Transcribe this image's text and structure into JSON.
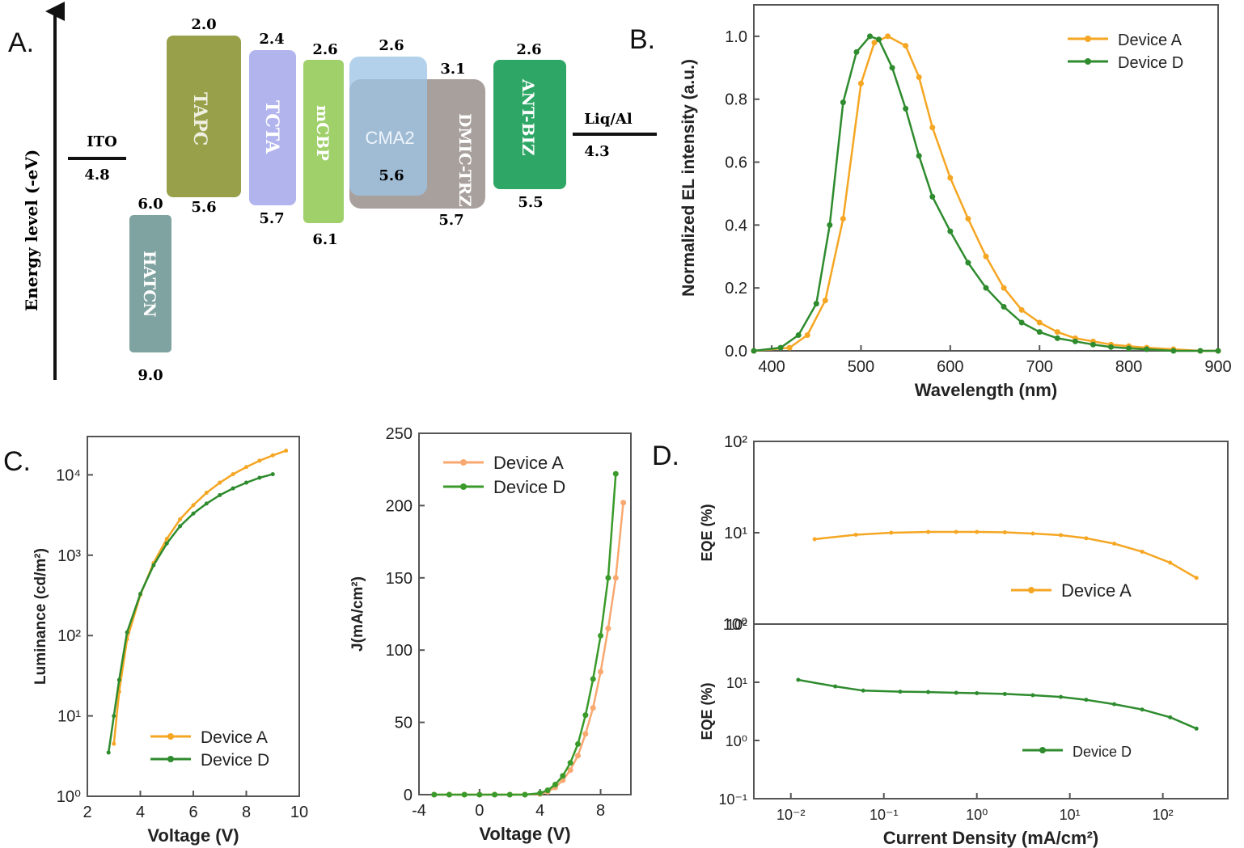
{
  "panel_labels": [
    "A.",
    "B.",
    "C.",
    "D."
  ],
  "colors": {
    "device_a": "#f5a623",
    "device_d": "#2e8b2e",
    "device_a_light": "#f8a870",
    "device_d_light": "#3a9a2a",
    "axis": "#555555"
  },
  "energy_diagram": {
    "ylabel": "Energy level (-eV)",
    "electrodes": [
      {
        "name": "ITO",
        "value": "4.8"
      },
      {
        "name": "Liq/Al",
        "value": "4.3"
      }
    ],
    "layers": [
      {
        "name": "HATCN",
        "top": "6.0",
        "bottom": "9.0",
        "color": "#7fa3a0"
      },
      {
        "name": "TAPC",
        "top": "2.0",
        "bottom": "5.6",
        "color": "#98a04a"
      },
      {
        "name": "TCTA",
        "top": "2.4",
        "bottom": "5.7",
        "color": "#b2b4ee"
      },
      {
        "name": "mCBP",
        "top": "2.6",
        "bottom": "6.1",
        "color": "#9fd06a"
      },
      {
        "name": "CMA2",
        "top": "2.6",
        "bottom": "5.6",
        "color": "#9ec4e6"
      },
      {
        "name": "DMIC-TRZ",
        "top": "3.1",
        "bottom": "5.7",
        "color": "#a8a09c"
      },
      {
        "name": "ANT-BIZ",
        "top": "2.6",
        "bottom": "5.5",
        "color": "#2ea766"
      }
    ]
  },
  "chart_data": [
    {
      "type": "line",
      "panel": "B.",
      "xlabel": "Wavelength (nm)",
      "ylabel": "Normalized EL intensity (a.u.)",
      "xlim": [
        380,
        900
      ],
      "ylim": [
        0,
        1.1
      ],
      "xticks": [
        "400",
        "500",
        "600",
        "700",
        "800",
        "900"
      ],
      "yticks": [
        "0.0",
        "0.2",
        "0.4",
        "0.6",
        "0.8",
        "1.0"
      ],
      "legend": "top-right",
      "series": [
        {
          "name": "Device A",
          "x": [
            380,
            420,
            440,
            460,
            480,
            500,
            515,
            530,
            550,
            565,
            580,
            600,
            620,
            640,
            660,
            680,
            700,
            720,
            740,
            760,
            780,
            800,
            820,
            850,
            880,
            900
          ],
          "y": [
            0.0,
            0.01,
            0.05,
            0.16,
            0.42,
            0.85,
            0.98,
            1.0,
            0.97,
            0.87,
            0.71,
            0.55,
            0.42,
            0.3,
            0.2,
            0.13,
            0.09,
            0.06,
            0.04,
            0.03,
            0.02,
            0.015,
            0.01,
            0.005,
            0.0,
            0.0
          ]
        },
        {
          "name": "Device D",
          "x": [
            380,
            410,
            430,
            450,
            465,
            480,
            495,
            510,
            520,
            535,
            550,
            565,
            580,
            600,
            620,
            640,
            660,
            680,
            700,
            720,
            740,
            760,
            780,
            800,
            820,
            850,
            880,
            900
          ],
          "y": [
            0.0,
            0.01,
            0.05,
            0.15,
            0.4,
            0.79,
            0.95,
            1.0,
            0.99,
            0.9,
            0.77,
            0.62,
            0.49,
            0.38,
            0.28,
            0.2,
            0.14,
            0.09,
            0.06,
            0.04,
            0.03,
            0.02,
            0.012,
            0.008,
            0.005,
            0.0,
            0.0,
            0.0
          ]
        }
      ]
    },
    {
      "type": "line",
      "panel": "C.",
      "xlabel": "Voltage (V)",
      "ylabel": "Luminance (cd/m²)",
      "ylog": true,
      "xlim": [
        2,
        10
      ],
      "ylim": [
        1,
        30000
      ],
      "xticks": [
        "2",
        "4",
        "6",
        "8",
        "10"
      ],
      "yticks": [
        "10⁰",
        "10¹",
        "10²",
        "10³",
        "10⁴"
      ],
      "legend": "bottom-right",
      "series": [
        {
          "name": "Device A",
          "x": [
            3.0,
            3.2,
            3.5,
            4.0,
            4.5,
            5.0,
            5.5,
            6.0,
            6.5,
            7.0,
            7.5,
            8.0,
            8.5,
            9.0,
            9.5
          ],
          "y": [
            4.5,
            20,
            90,
            320,
            800,
            1600,
            2800,
            4200,
            6000,
            8000,
            10200,
            12500,
            15000,
            17500,
            20000
          ]
        },
        {
          "name": "Device D",
          "x": [
            2.8,
            3.0,
            3.2,
            3.5,
            4.0,
            4.5,
            5.0,
            5.5,
            6.0,
            6.5,
            7.0,
            7.5,
            8.0,
            8.5,
            9.0
          ],
          "y": [
            3.5,
            10,
            28,
            110,
            330,
            750,
            1400,
            2300,
            3300,
            4400,
            5600,
            6800,
            8000,
            9200,
            10200
          ]
        }
      ]
    },
    {
      "type": "line",
      "panel": "C.",
      "xlabel": "Voltage (V)",
      "ylabel": "J(mA/cm²)",
      "xlim": [
        -4,
        10
      ],
      "ylim": [
        0,
        250
      ],
      "xticks": [
        "-4",
        "0",
        "4",
        "8"
      ],
      "yticks": [
        "0",
        "50",
        "100",
        "150",
        "200",
        "250"
      ],
      "legend": "top-left",
      "series": [
        {
          "name": "Device A",
          "x": [
            -3,
            -2,
            -1,
            0,
            1,
            2,
            3,
            4,
            4.5,
            5,
            5.5,
            6,
            6.5,
            7,
            7.5,
            8,
            8.5,
            9,
            9.5
          ],
          "y": [
            0,
            0,
            0,
            0,
            0,
            0,
            0,
            0.5,
            2,
            5,
            10,
            17,
            27,
            42,
            60,
            85,
            115,
            150,
            202
          ]
        },
        {
          "name": "Device D",
          "x": [
            -3,
            -2,
            -1,
            0,
            1,
            2,
            3,
            4,
            4.5,
            5,
            5.5,
            6,
            6.5,
            7,
            7.5,
            8,
            8.5,
            9
          ],
          "y": [
            0,
            0,
            0,
            0,
            0,
            0,
            0,
            1,
            3,
            7,
            13,
            22,
            35,
            55,
            80,
            110,
            150,
            222
          ]
        }
      ]
    },
    {
      "type": "line",
      "panel": "D.",
      "xlabel": "Current Density (mA/cm²)",
      "ylabel": "EQE (%)",
      "xlog": true,
      "ylog": true,
      "xlim": [
        0.004,
        500
      ],
      "ylim": [
        1,
        100
      ],
      "xticks": [
        "10⁻²",
        "10⁻¹",
        "10⁰",
        "10¹",
        "10²"
      ],
      "yticks": [
        "10⁰",
        "10¹",
        "10²"
      ],
      "legend": "bottom-right",
      "series": [
        {
          "name": "Device A",
          "x": [
            0.018,
            0.05,
            0.12,
            0.3,
            0.6,
            1,
            2,
            4,
            8,
            15,
            30,
            60,
            120,
            230
          ],
          "y": [
            8.5,
            9.5,
            10,
            10.2,
            10.2,
            10.2,
            10.1,
            9.8,
            9.4,
            8.7,
            7.6,
            6.2,
            4.7,
            3.2
          ]
        }
      ]
    },
    {
      "type": "line",
      "panel": "D.",
      "xlabel": "Current Density (mA/cm²)",
      "ylabel": "EQE (%)",
      "xlog": true,
      "ylog": true,
      "xlim": [
        0.004,
        500
      ],
      "ylim": [
        0.1,
        100
      ],
      "xticks": [
        "10⁻²",
        "10⁻¹",
        "10⁰",
        "10¹",
        "10²"
      ],
      "yticks": [
        "10⁻¹",
        "10⁰",
        "10¹",
        "10²"
      ],
      "legend": "bottom-right",
      "series": [
        {
          "name": "Device D",
          "x": [
            0.012,
            0.03,
            0.06,
            0.15,
            0.3,
            0.6,
            1,
            2,
            4,
            8,
            15,
            30,
            60,
            120,
            230
          ],
          "y": [
            11,
            8.5,
            7.2,
            6.9,
            6.8,
            6.6,
            6.5,
            6.3,
            6,
            5.6,
            5,
            4.2,
            3.4,
            2.5,
            1.6
          ]
        }
      ]
    }
  ]
}
